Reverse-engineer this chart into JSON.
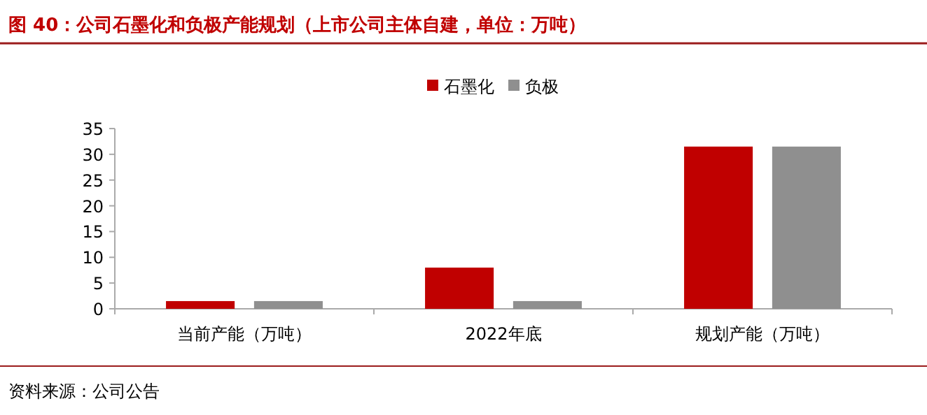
{
  "chart_data": {
    "type": "bar",
    "title": "图 40：公司石墨化和负极产能规划（上市公司主体自建，单位：万吨）",
    "categories": [
      "当前产能（万吨）",
      "2022年底",
      "规划产能（万吨）"
    ],
    "series": [
      {
        "name": "石墨化",
        "color": "#c00000",
        "values": [
          1.5,
          8,
          31.5
        ]
      },
      {
        "name": "负极",
        "color": "#8f8f8f",
        "values": [
          1.5,
          1.5,
          31.5
        ]
      }
    ],
    "ylim": [
      0,
      35
    ],
    "yticks": [
      0,
      5,
      10,
      15,
      20,
      25,
      30,
      35
    ],
    "grid": false,
    "legend": "top",
    "annotations": [
      "资料来源：公司公告"
    ]
  }
}
